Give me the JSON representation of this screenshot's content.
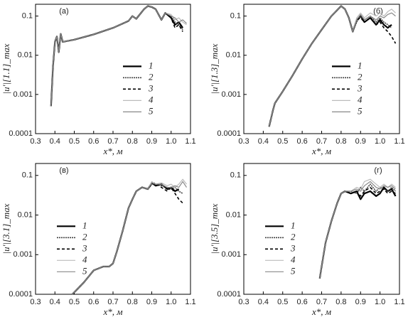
{
  "chart_data": [
    {
      "type": "line",
      "title": "(а)",
      "y_label": "|u'|[1.1]_max",
      "x_label": "x*, м",
      "y_scale": "log",
      "legend": "center right",
      "x": [
        0.38,
        0.39,
        0.4,
        0.41,
        0.42,
        0.43,
        0.44,
        0.5,
        0.6,
        0.7,
        0.78,
        0.8,
        0.82,
        0.86,
        0.88,
        0.9,
        0.92,
        0.95,
        0.97,
        1.0,
        1.02,
        1.04,
        1.06,
        1.08
      ],
      "series": [
        {
          "name": "1",
          "color": "#000000",
          "dash": "none",
          "width": 2.2,
          "values": [
            0.0005,
            0.005,
            0.022,
            0.03,
            0.012,
            0.035,
            0.022,
            0.025,
            0.034,
            0.05,
            0.075,
            0.1,
            0.085,
            0.15,
            0.18,
            0.17,
            0.15,
            0.08,
            0.12,
            0.09,
            0.06,
            0.07,
            0.05,
            null
          ]
        },
        {
          "name": "2",
          "color": "#444444",
          "dash": "2,1",
          "width": 1.6,
          "values": [
            0.0005,
            0.005,
            0.022,
            0.03,
            0.012,
            0.035,
            0.022,
            0.025,
            0.034,
            0.05,
            0.075,
            0.1,
            0.085,
            0.15,
            0.18,
            0.17,
            0.15,
            0.08,
            0.12,
            0.1,
            0.07,
            0.06,
            0.045,
            null
          ]
        },
        {
          "name": "3",
          "color": "#000000",
          "dash": "4,3",
          "width": 1.6,
          "values": [
            0.0005,
            0.005,
            0.022,
            0.03,
            0.012,
            0.035,
            0.022,
            0.025,
            0.034,
            0.05,
            0.075,
            0.1,
            0.085,
            0.15,
            0.18,
            0.17,
            0.15,
            0.08,
            0.12,
            0.09,
            0.05,
            0.06,
            0.04,
            null
          ]
        },
        {
          "name": "4",
          "color": "#bbbbbb",
          "dash": "none",
          "width": 1.2,
          "values": [
            0.0005,
            0.005,
            0.022,
            0.03,
            0.012,
            0.035,
            0.022,
            0.025,
            0.034,
            0.05,
            0.075,
            0.1,
            0.085,
            0.15,
            0.18,
            0.17,
            0.15,
            0.08,
            0.12,
            0.11,
            0.08,
            0.09,
            0.07,
            0.06
          ]
        },
        {
          "name": "5",
          "color": "#888888",
          "dash": "none",
          "width": 1.2,
          "values": [
            0.0005,
            0.005,
            0.022,
            0.03,
            0.012,
            0.035,
            0.022,
            0.025,
            0.034,
            0.05,
            0.075,
            0.1,
            0.085,
            0.15,
            0.18,
            0.17,
            0.15,
            0.08,
            0.12,
            0.1,
            0.09,
            0.07,
            0.08,
            0.065
          ]
        }
      ],
      "xlim": [
        0.3,
        1.1
      ],
      "ylim": [
        0.0001,
        0.2
      ],
      "xticks": [
        0.3,
        0.4,
        0.5,
        0.6,
        0.7,
        0.8,
        0.9,
        {
          "value": 1,
          "label": "1.0"
        },
        1.1
      ],
      "yticks": [
        0.0001,
        0.001,
        0.01,
        0.1
      ]
    },
    {
      "type": "line",
      "title": "(б)",
      "y_label": "|u'|[1.3]_max",
      "x_label": "x*, м",
      "y_scale": "log",
      "legend": "center right",
      "x": [
        0.43,
        0.45,
        0.46,
        0.5,
        0.55,
        0.6,
        0.65,
        0.7,
        0.75,
        0.8,
        0.82,
        0.84,
        0.86,
        0.88,
        0.9,
        0.92,
        0.95,
        0.98,
        1.0,
        1.02,
        1.04,
        1.06,
        1.08
      ],
      "series": [
        {
          "name": "1",
          "color": "#000000",
          "dash": "none",
          "width": 2.2,
          "values": [
            0.00015,
            0.0004,
            0.0006,
            0.0012,
            0.003,
            0.008,
            0.02,
            0.045,
            0.1,
            0.18,
            0.15,
            0.09,
            0.04,
            0.08,
            0.1,
            0.07,
            0.09,
            0.06,
            0.08,
            0.06,
            0.05,
            0.06,
            null
          ]
        },
        {
          "name": "2",
          "color": "#444444",
          "dash": "2,1",
          "width": 1.6,
          "values": [
            0.00015,
            0.0004,
            0.0006,
            0.0012,
            0.003,
            0.008,
            0.02,
            0.045,
            0.1,
            0.18,
            0.15,
            0.09,
            0.04,
            0.07,
            0.1,
            0.08,
            0.1,
            0.07,
            0.09,
            0.07,
            0.06,
            0.05,
            null
          ]
        },
        {
          "name": "3",
          "color": "#000000",
          "dash": "4,3",
          "width": 1.6,
          "values": [
            0.00015,
            0.0004,
            0.0006,
            0.0012,
            0.003,
            0.008,
            0.02,
            0.045,
            0.1,
            0.18,
            0.15,
            0.09,
            0.04,
            0.08,
            0.09,
            0.07,
            0.09,
            0.06,
            0.07,
            0.05,
            0.04,
            0.03,
            0.02
          ]
        },
        {
          "name": "4",
          "color": "#bbbbbb",
          "dash": "none",
          "width": 1.2,
          "values": [
            0.00015,
            0.0004,
            0.0006,
            0.0012,
            0.003,
            0.008,
            0.02,
            0.045,
            0.1,
            0.18,
            0.15,
            0.09,
            0.04,
            0.09,
            0.12,
            0.09,
            0.12,
            0.1,
            0.12,
            0.1,
            0.13,
            0.15,
            0.12
          ]
        },
        {
          "name": "5",
          "color": "#888888",
          "dash": "none",
          "width": 1.2,
          "values": [
            0.00015,
            0.0004,
            0.0006,
            0.0012,
            0.003,
            0.008,
            0.02,
            0.045,
            0.1,
            0.18,
            0.15,
            0.09,
            0.04,
            0.08,
            0.11,
            0.08,
            0.1,
            0.08,
            0.1,
            0.09,
            0.11,
            0.12,
            0.1
          ]
        }
      ],
      "xlim": [
        0.3,
        1.1
      ],
      "ylim": [
        0.0001,
        0.2
      ],
      "xticks": [
        0.3,
        0.4,
        0.5,
        0.6,
        0.7,
        0.8,
        0.9,
        {
          "value": 1,
          "label": "1.0"
        },
        1.1
      ],
      "yticks": [
        0.0001,
        0.001,
        0.01,
        0.1
      ]
    },
    {
      "type": "line",
      "title": "(в)",
      "y_label": "|u'|[3.1]_max",
      "x_label": "x*, м",
      "y_scale": "log",
      "legend": "center left",
      "x": [
        0.49,
        0.55,
        0.6,
        0.65,
        0.68,
        0.7,
        0.72,
        0.75,
        0.78,
        0.8,
        0.82,
        0.85,
        0.88,
        0.9,
        0.92,
        0.95,
        0.98,
        1.0,
        1.02,
        1.04,
        1.06,
        1.08
      ],
      "series": [
        {
          "name": "1",
          "color": "#000000",
          "dash": "none",
          "width": 2.2,
          "values": [
            0.0001,
            0.0002,
            0.0004,
            0.0005,
            0.0005,
            0.0006,
            0.0012,
            0.004,
            0.015,
            0.025,
            0.04,
            0.05,
            0.045,
            0.065,
            0.055,
            0.06,
            0.045,
            0.05,
            0.04,
            0.045,
            null,
            null
          ]
        },
        {
          "name": "2",
          "color": "#444444",
          "dash": "2,1",
          "width": 1.6,
          "values": [
            0.0001,
            0.0002,
            0.0004,
            0.0005,
            0.0005,
            0.0006,
            0.0012,
            0.004,
            0.015,
            0.025,
            0.04,
            0.05,
            0.045,
            0.06,
            0.06,
            0.055,
            0.05,
            0.045,
            0.05,
            0.04,
            0.035,
            null
          ]
        },
        {
          "name": "3",
          "color": "#000000",
          "dash": "4,3",
          "width": 1.6,
          "values": [
            0.0001,
            0.0002,
            0.0004,
            0.0005,
            0.0005,
            0.0006,
            0.0012,
            0.004,
            0.015,
            0.025,
            0.04,
            0.05,
            0.045,
            0.06,
            0.065,
            0.05,
            0.04,
            0.05,
            0.035,
            0.025,
            0.02,
            null
          ]
        },
        {
          "name": "4",
          "color": "#bbbbbb",
          "dash": "none",
          "width": 1.2,
          "values": [
            0.0001,
            0.0002,
            0.0004,
            0.0005,
            0.0005,
            0.0006,
            0.0012,
            0.004,
            0.015,
            0.025,
            0.04,
            0.05,
            0.045,
            0.07,
            0.06,
            0.065,
            0.055,
            0.06,
            0.05,
            0.06,
            0.08,
            0.06
          ]
        },
        {
          "name": "5",
          "color": "#888888",
          "dash": "none",
          "width": 1.2,
          "values": [
            0.0001,
            0.0002,
            0.0004,
            0.0005,
            0.0005,
            0.0006,
            0.0012,
            0.004,
            0.015,
            0.025,
            0.04,
            0.05,
            0.045,
            0.065,
            0.06,
            0.06,
            0.05,
            0.05,
            0.055,
            0.05,
            0.07,
            0.05
          ]
        }
      ],
      "xlim": [
        0.3,
        1.1
      ],
      "ylim": [
        0.0001,
        0.2
      ],
      "xticks": [
        0.3,
        0.4,
        0.5,
        0.6,
        0.7,
        0.8,
        0.9,
        {
          "value": 1,
          "label": "1.0"
        },
        1.1
      ],
      "yticks": [
        0.0001,
        0.001,
        0.01,
        0.1
      ]
    },
    {
      "type": "line",
      "title": "(г)",
      "y_label": "|u'|[3.5]_max",
      "x_label": "x*, м",
      "y_scale": "log",
      "legend": "center left",
      "x": [
        0.69,
        0.7,
        0.72,
        0.75,
        0.78,
        0.8,
        0.82,
        0.85,
        0.88,
        0.9,
        0.92,
        0.95,
        0.98,
        1.0,
        1.02,
        1.04,
        1.06,
        1.08
      ],
      "series": [
        {
          "name": "1",
          "color": "#000000",
          "dash": "none",
          "width": 2.2,
          "values": [
            0.00025,
            0.0005,
            0.002,
            0.007,
            0.02,
            0.035,
            0.04,
            0.035,
            0.04,
            0.025,
            0.035,
            0.04,
            0.03,
            0.035,
            0.05,
            0.04,
            0.045,
            0.03
          ]
        },
        {
          "name": "2",
          "color": "#444444",
          "dash": "2,1",
          "width": 1.6,
          "values": [
            0.00025,
            0.0005,
            0.002,
            0.007,
            0.02,
            0.035,
            0.04,
            0.04,
            0.035,
            0.05,
            0.04,
            0.06,
            0.04,
            0.05,
            0.045,
            0.04,
            0.05,
            0.04
          ]
        },
        {
          "name": "3",
          "color": "#000000",
          "dash": "4,3",
          "width": 1.6,
          "values": [
            0.00025,
            0.0005,
            0.002,
            0.007,
            0.02,
            0.035,
            0.04,
            0.035,
            0.04,
            0.03,
            0.04,
            0.05,
            0.035,
            0.04,
            0.045,
            0.035,
            0.04,
            0.035
          ]
        },
        {
          "name": "4",
          "color": "#bbbbbb",
          "dash": "none",
          "width": 1.2,
          "values": [
            0.00025,
            0.0005,
            0.002,
            0.007,
            0.02,
            0.035,
            0.04,
            0.04,
            0.05,
            0.045,
            0.07,
            0.08,
            0.06,
            0.05,
            0.06,
            0.05,
            0.06,
            0.05
          ]
        },
        {
          "name": "5",
          "color": "#888888",
          "dash": "none",
          "width": 1.2,
          "values": [
            0.00025,
            0.0005,
            0.002,
            0.007,
            0.02,
            0.035,
            0.04,
            0.04,
            0.045,
            0.04,
            0.055,
            0.07,
            0.05,
            0.045,
            0.055,
            0.05,
            0.055,
            0.045
          ]
        }
      ],
      "xlim": [
        0.3,
        1.1
      ],
      "ylim": [
        0.0001,
        0.2
      ],
      "xticks": [
        0.3,
        0.4,
        0.5,
        0.6,
        0.7,
        0.8,
        0.9,
        {
          "value": 1,
          "label": "1.0"
        },
        1.1
      ],
      "yticks": [
        0.0001,
        0.001,
        0.01,
        0.1
      ]
    }
  ]
}
